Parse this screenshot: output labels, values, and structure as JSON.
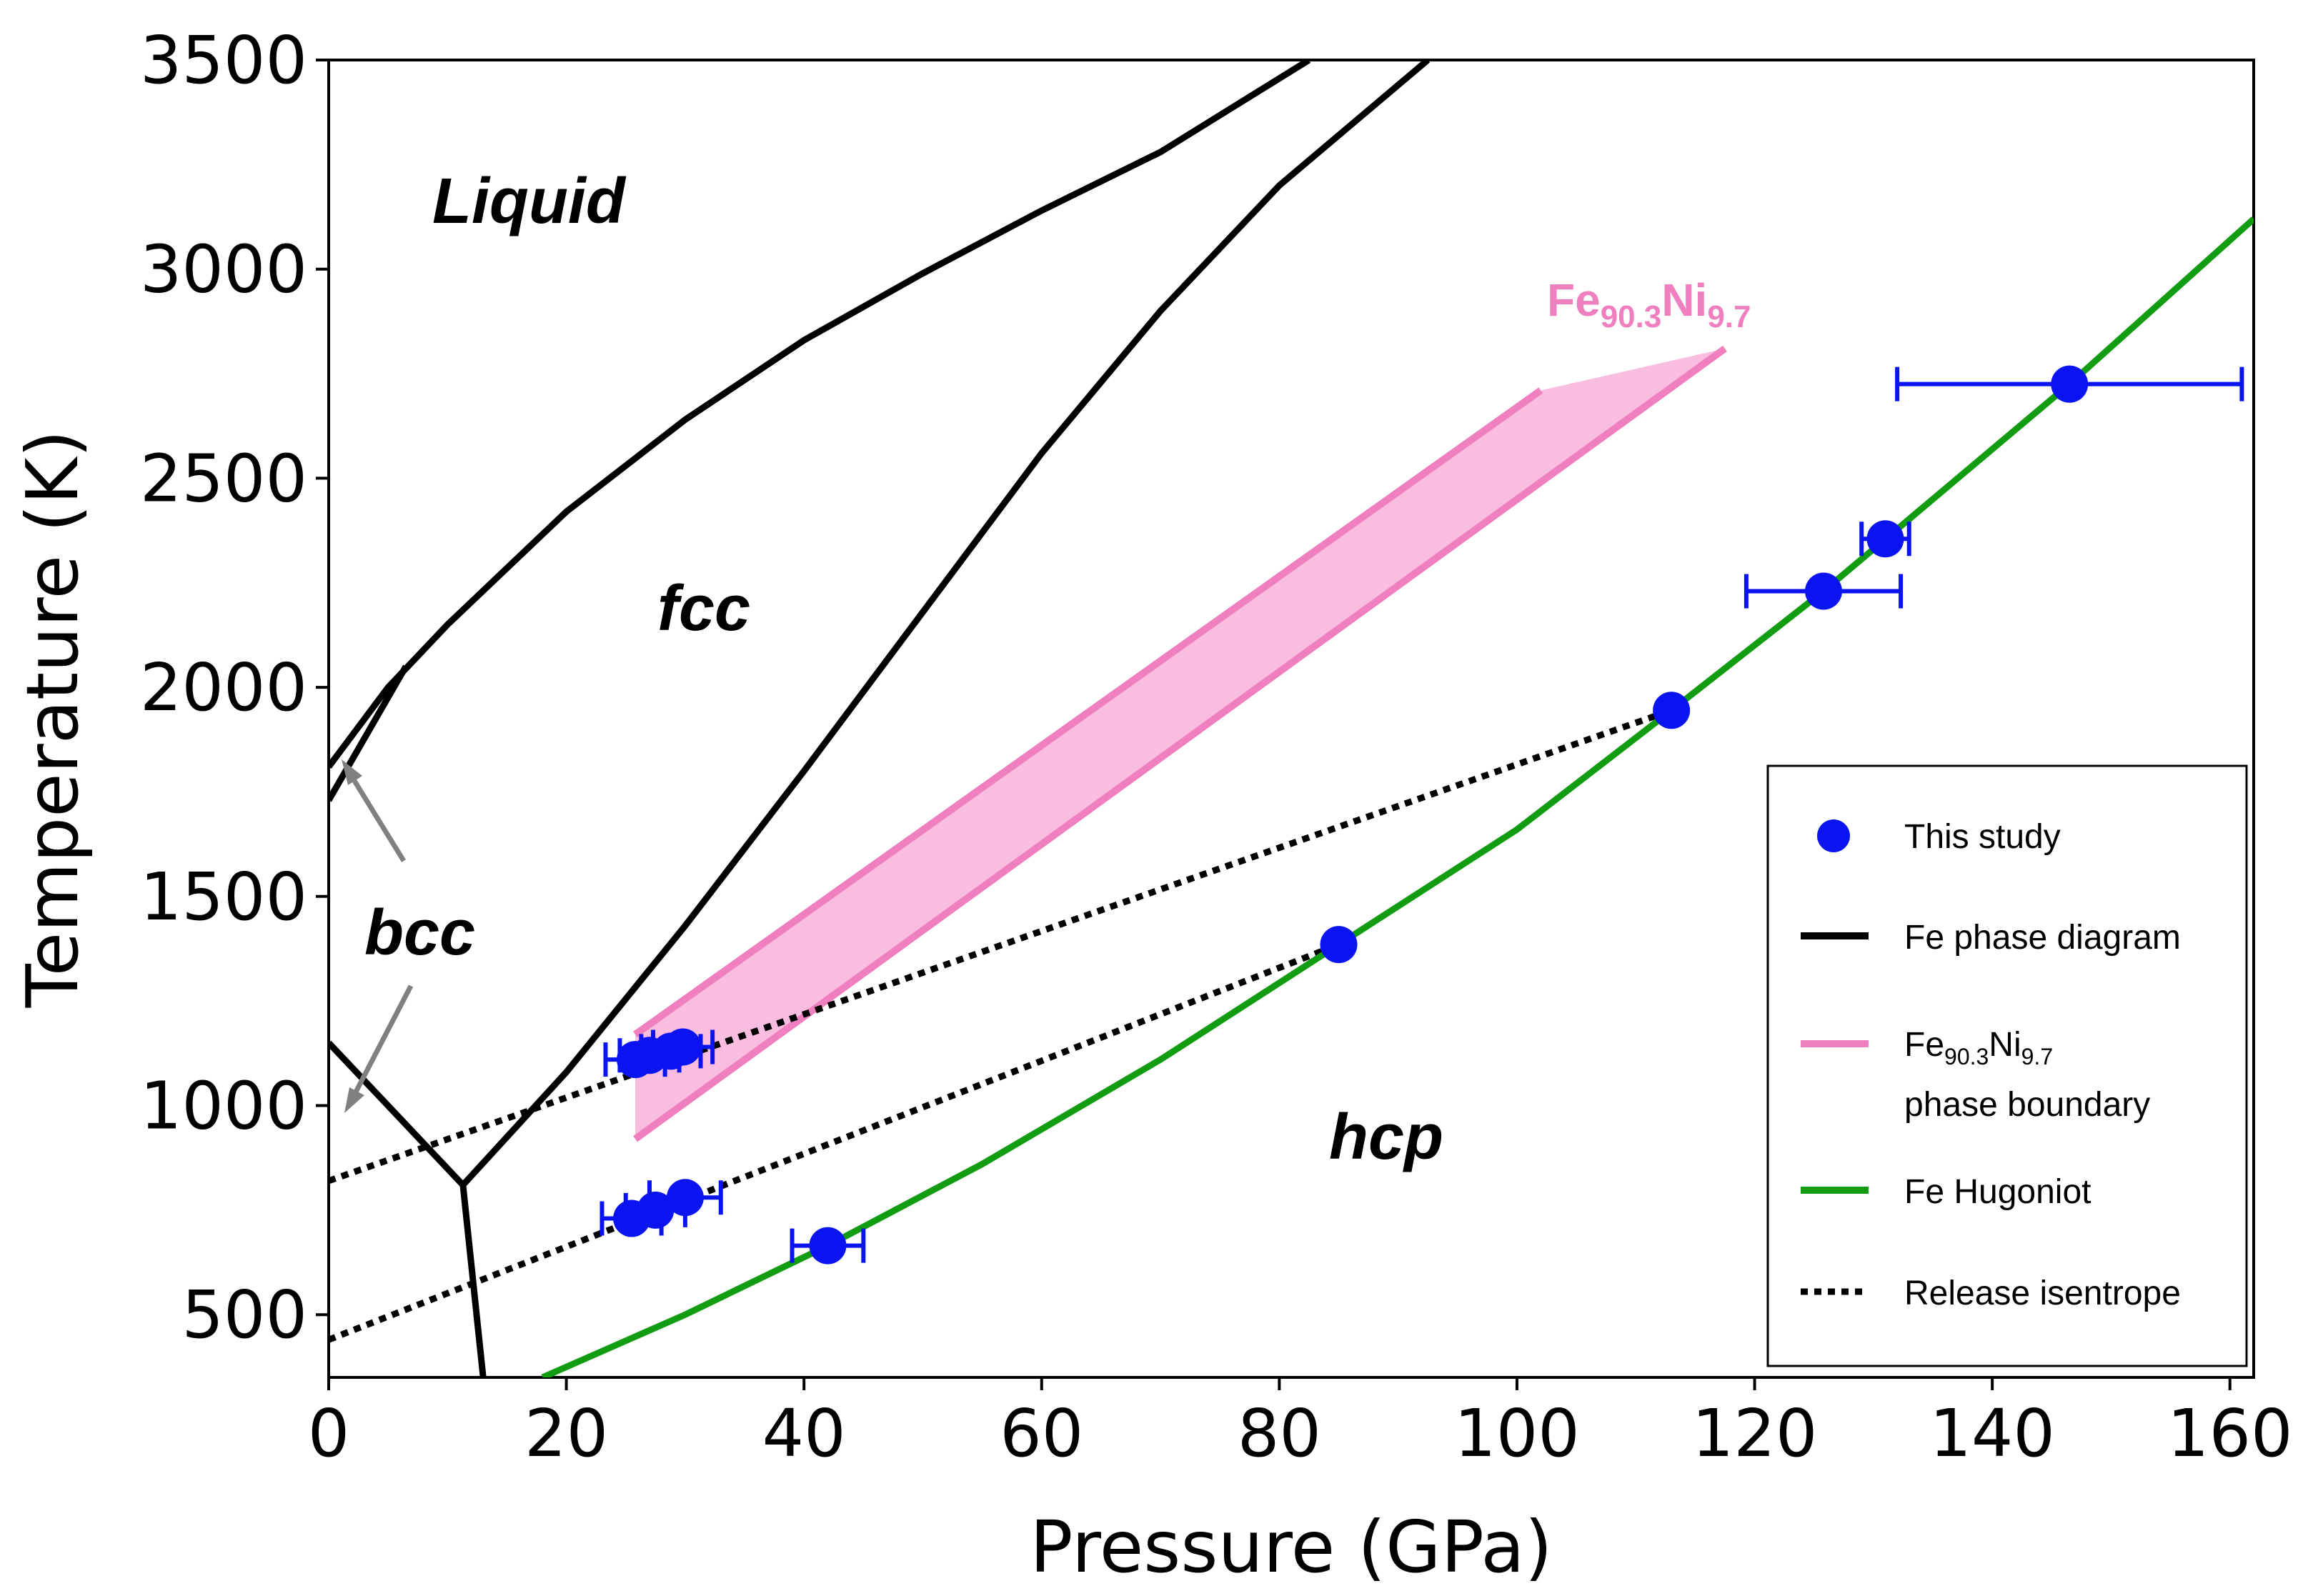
{
  "chart_data": {
    "type": "scatter",
    "title": "",
    "xlabel": "Pressure (GPa)",
    "ylabel": "Temperature (K)",
    "xlim": [
      0,
      162
    ],
    "ylim": [
      350,
      3500
    ],
    "x_ticks": [
      0,
      20,
      40,
      60,
      80,
      100,
      120,
      140,
      160
    ],
    "y_ticks": [
      500,
      1000,
      1500,
      2000,
      2500,
      3000,
      3500
    ],
    "x_tick_labels": [
      "0",
      "20",
      "40",
      "60",
      "80",
      "100",
      "120",
      "140",
      "160"
    ],
    "y_tick_labels": [
      "500",
      "1000",
      "1500",
      "2000",
      "2500",
      "3000",
      "3500"
    ],
    "colors": {
      "points": "#0a14f0",
      "phase": "#000000",
      "pink": "#f07fc0",
      "pink_fill": "#f9bde0",
      "hugoniot": "#119c11",
      "bcc_arrow": "#808080"
    },
    "regions": {
      "liquid": "Liquid",
      "fcc": "fcc",
      "bcc": "bcc",
      "hcp": "hcp"
    },
    "pink_label": {
      "base1": "Fe",
      "sub1": "90.3",
      "base2": "Ni",
      "sub2": "9.7"
    },
    "legend": {
      "this_study": "This study",
      "fe_phase": "Fe phase diagram",
      "pink_base1": "Fe",
      "pink_sub1": "90.3",
      "pink_base2": "Ni",
      "pink_sub2": "9.7",
      "pink_line2": "phase boundary",
      "hugoniot": "Fe Hugoniot",
      "isentrope": "Release isentrope"
    },
    "points": [
      {
        "x": 25.8,
        "y": 1110,
        "xerr": 2.5
      },
      {
        "x": 27.0,
        "y": 1120,
        "xerr": 2.5
      },
      {
        "x": 28.8,
        "y": 1130,
        "xerr": 2.5
      },
      {
        "x": 29.8,
        "y": 1140,
        "xerr": 2.5
      },
      {
        "x": 25.5,
        "y": 730,
        "xerr": 2.5
      },
      {
        "x": 27.5,
        "y": 750,
        "xerr": 2.5
      },
      {
        "x": 30.0,
        "y": 780,
        "xerr": 3.0
      },
      {
        "x": 42.0,
        "y": 665,
        "xerr": 3.0
      },
      {
        "x": 85.0,
        "y": 1385,
        "xerr": 0
      },
      {
        "x": 113.0,
        "y": 1945,
        "xerr": 0
      },
      {
        "x": 125.8,
        "y": 2230,
        "xerr": 6.5
      },
      {
        "x": 131.0,
        "y": 2355,
        "xerr": 2.0
      },
      {
        "x": 146.5,
        "y": 2725,
        "xerr": 14.5
      }
    ],
    "hugoniot": [
      [
        18,
        350
      ],
      [
        30,
        500
      ],
      [
        42,
        665
      ],
      [
        55,
        860
      ],
      [
        70,
        1110
      ],
      [
        85,
        1385
      ],
      [
        100,
        1660
      ],
      [
        113,
        1945
      ],
      [
        125.8,
        2230
      ],
      [
        135,
        2450
      ],
      [
        146.5,
        2725
      ],
      [
        162,
        3120
      ]
    ],
    "isentropes": [
      [
        [
          0,
          820
        ],
        [
          113,
          1945
        ]
      ],
      [
        [
          0,
          440
        ],
        [
          85,
          1385
        ]
      ]
    ],
    "fe_phase": {
      "melt": [
        [
          0,
          1810
        ],
        [
          5,
          2000
        ],
        [
          10,
          2150
        ],
        [
          20,
          2420
        ],
        [
          30,
          2640
        ],
        [
          40,
          2830
        ],
        [
          50,
          2990
        ],
        [
          60,
          3140
        ],
        [
          70,
          3280
        ],
        [
          82.5,
          3500
        ]
      ],
      "bcc_fcc": [
        [
          0,
          1730
        ],
        [
          6.5,
          2050
        ]
      ],
      "fcc_hcp": [
        [
          11.3,
          810
        ],
        [
          20,
          1080
        ],
        [
          30,
          1430
        ],
        [
          40,
          1800
        ],
        [
          50,
          2180
        ],
        [
          60,
          2560
        ],
        [
          70,
          2900
        ],
        [
          80,
          3200
        ],
        [
          92.5,
          3500
        ]
      ],
      "bcc_hcp": [
        [
          0,
          1150
        ],
        [
          11.3,
          810
        ]
      ],
      "hcp_low": [
        [
          11.3,
          810
        ],
        [
          13.0,
          350
        ]
      ]
    },
    "pink_band": {
      "upper": [
        [
          25.8,
          1170
        ],
        [
          102,
          2710
        ]
      ],
      "lower": [
        [
          25.8,
          920
        ],
        [
          117.5,
          2810
        ]
      ]
    }
  }
}
